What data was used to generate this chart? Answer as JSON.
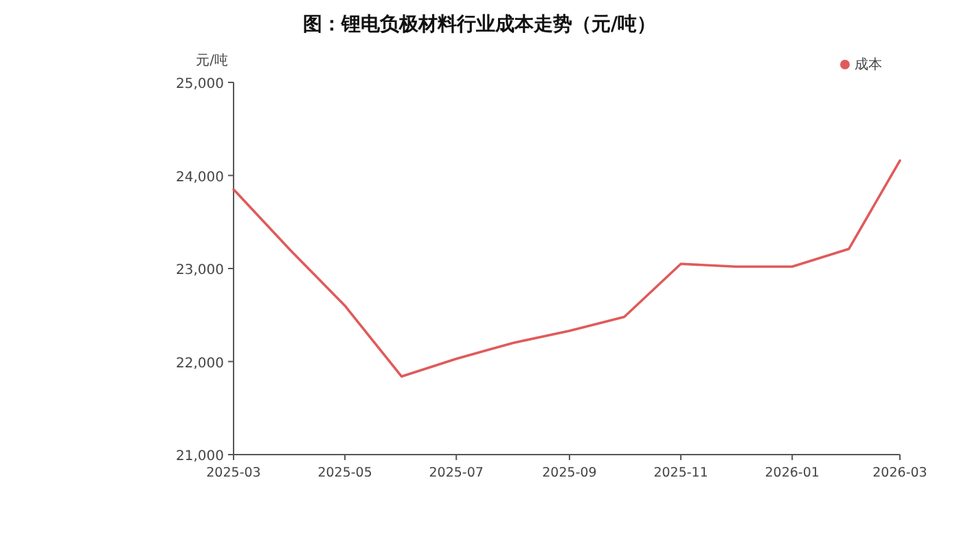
{
  "chart_data": {
    "type": "line",
    "title": "图：锂电负极材料行业成本走势（元/吨）",
    "ylabel": "元/吨",
    "x": [
      "2025-03",
      "2025-04",
      "2025-05",
      "2025-06",
      "2025-07",
      "2025-08",
      "2025-09",
      "2025-10",
      "2025-11",
      "2025-12",
      "2026-01",
      "2026-02",
      "2026-03"
    ],
    "series": [
      {
        "name": "成本",
        "color": "#e05a5a",
        "values": [
          23850,
          23200,
          22600,
          21840,
          22030,
          22200,
          22330,
          22480,
          23050,
          23020,
          23020,
          23210,
          24160
        ]
      }
    ],
    "xlim": [
      "2025-03",
      "2026-03"
    ],
    "xticks": [
      "2025-03",
      "2025-05",
      "2025-07",
      "2025-09",
      "2025-11",
      "2026-01",
      "2026-03"
    ],
    "ylim": [
      21000,
      25000
    ],
    "yticks": [
      {
        "value": 21000,
        "label": "21,000"
      },
      {
        "value": 22000,
        "label": "22,000"
      },
      {
        "value": 23000,
        "label": "23,000"
      },
      {
        "value": 24000,
        "label": "24,000"
      },
      {
        "value": 25000,
        "label": "25,000"
      }
    ],
    "legend": "top right",
    "grid": false,
    "marker": "none",
    "line_style": "solid"
  }
}
